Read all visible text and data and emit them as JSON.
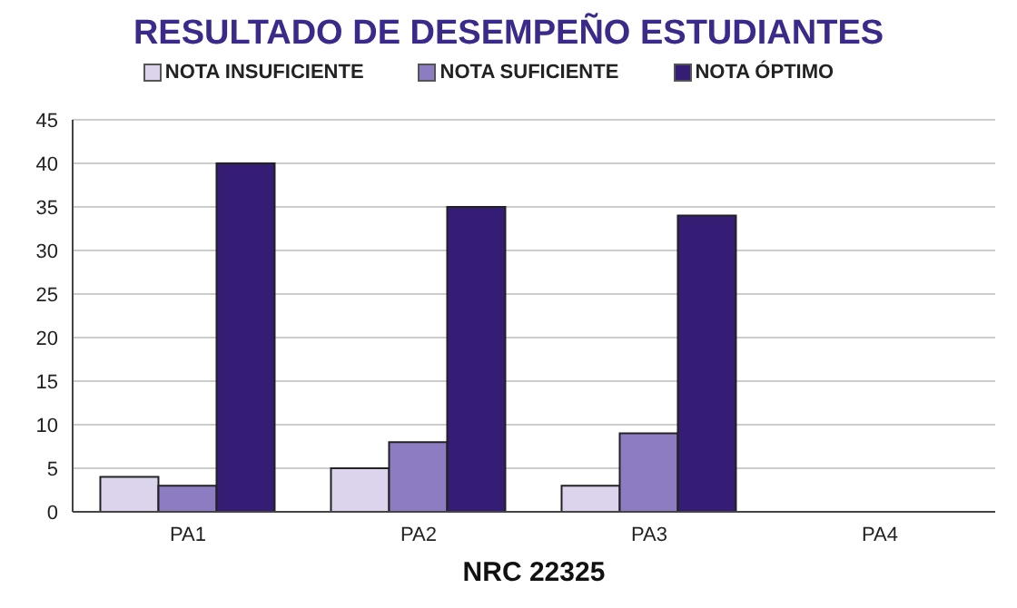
{
  "chart_data": {
    "type": "bar",
    "title": "RESULTADO DE DESEMPEÑO ESTUDIANTES",
    "xlabel": "NRC 22325",
    "categories": [
      "PA1",
      "PA2",
      "PA3",
      "PA4"
    ],
    "series": [
      {
        "name": "NOTA INSUFICIENTE",
        "color": "#dcd4ec",
        "values": [
          4,
          5,
          3,
          null
        ]
      },
      {
        "name": "NOTA SUFICIENTE",
        "color": "#8e7cc3",
        "values": [
          3,
          8,
          9,
          null
        ]
      },
      {
        "name": "NOTA ÓPTIMO",
        "color": "#351c75",
        "values": [
          40,
          35,
          34,
          null
        ]
      }
    ],
    "ylim": [
      0,
      45
    ],
    "yticks": [
      0,
      5,
      10,
      15,
      20,
      25,
      30,
      35,
      40,
      45
    ],
    "grid": "y",
    "legend": "top"
  }
}
